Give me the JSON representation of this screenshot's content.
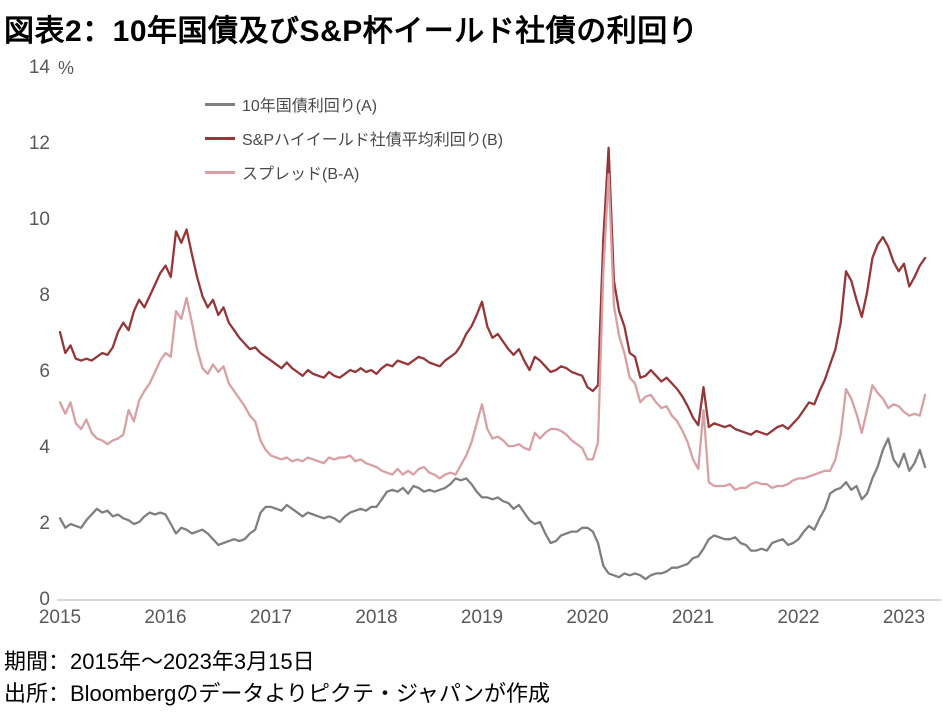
{
  "title": "図表2：10年国債及びS&P杯イールド社債の利回り",
  "footer": {
    "period": "期間：2015年～2023年3月15日",
    "source": "出所：Bloombergのデータよりピクテ・ジャパンが作成"
  },
  "chart_data": {
    "type": "line",
    "title": "図表2：10年国債及びS&P杯イールド社債の利回り",
    "unit_label": "%",
    "xlabel": "",
    "ylabel": "%",
    "xlim": [
      2015,
      2023.35
    ],
    "ylim": [
      0,
      14
    ],
    "grid": false,
    "legend_position": "top-left-inside",
    "y_ticks": [
      0,
      2,
      4,
      6,
      8,
      10,
      12,
      14
    ],
    "x_ticks": [
      2015,
      2016,
      2017,
      2018,
      2019,
      2020,
      2021,
      2022,
      2023
    ],
    "x_tick_labels": [
      "2015",
      "2016",
      "2017",
      "2018",
      "2019",
      "2020",
      "2021",
      "2022",
      "2023"
    ],
    "x_start": 2015.0,
    "x_step": 0.05,
    "axis_color": "#d9d9d9",
    "tick_color": "#595959",
    "series": [
      {
        "name": "10年国債利回り(A)",
        "color": "#7f7f7f",
        "values": [
          2.15,
          1.9,
          2.0,
          1.95,
          1.9,
          2.1,
          2.25,
          2.4,
          2.3,
          2.35,
          2.2,
          2.25,
          2.15,
          2.1,
          2.0,
          2.05,
          2.2,
          2.3,
          2.25,
          2.3,
          2.25,
          2.0,
          1.75,
          1.9,
          1.85,
          1.75,
          1.8,
          1.85,
          1.75,
          1.6,
          1.45,
          1.5,
          1.55,
          1.6,
          1.55,
          1.6,
          1.75,
          1.85,
          2.3,
          2.45,
          2.45,
          2.4,
          2.35,
          2.5,
          2.4,
          2.3,
          2.2,
          2.3,
          2.25,
          2.2,
          2.15,
          2.2,
          2.15,
          2.05,
          2.2,
          2.3,
          2.35,
          2.4,
          2.35,
          2.45,
          2.45,
          2.65,
          2.85,
          2.9,
          2.85,
          2.95,
          2.8,
          3.0,
          2.95,
          2.85,
          2.9,
          2.85,
          2.9,
          2.95,
          3.05,
          3.2,
          3.15,
          3.2,
          3.05,
          2.85,
          2.7,
          2.7,
          2.65,
          2.7,
          2.6,
          2.55,
          2.4,
          2.5,
          2.3,
          2.1,
          2.0,
          2.05,
          1.75,
          1.5,
          1.55,
          1.7,
          1.75,
          1.8,
          1.8,
          1.9,
          1.9,
          1.8,
          1.5,
          0.9,
          0.7,
          0.65,
          0.6,
          0.7,
          0.65,
          0.7,
          0.65,
          0.55,
          0.65,
          0.7,
          0.7,
          0.75,
          0.85,
          0.85,
          0.9,
          0.95,
          1.1,
          1.15,
          1.35,
          1.6,
          1.7,
          1.65,
          1.6,
          1.6,
          1.65,
          1.5,
          1.45,
          1.3,
          1.3,
          1.35,
          1.3,
          1.5,
          1.55,
          1.6,
          1.45,
          1.5,
          1.6,
          1.8,
          1.95,
          1.85,
          2.15,
          2.4,
          2.8,
          2.9,
          2.95,
          3.1,
          2.9,
          3.0,
          2.65,
          2.8,
          3.2,
          3.5,
          3.95,
          4.25,
          3.7,
          3.5,
          3.85,
          3.4,
          3.6,
          3.95,
          3.5
        ]
      },
      {
        "name": "S&Pハイイールド社債平均利回り(B)",
        "color": "#953638",
        "values": [
          7.05,
          6.5,
          6.7,
          6.35,
          6.3,
          6.35,
          6.3,
          6.4,
          6.5,
          6.45,
          6.65,
          7.05,
          7.3,
          7.1,
          7.6,
          7.9,
          7.7,
          8.0,
          8.3,
          8.6,
          8.8,
          8.5,
          9.7,
          9.4,
          9.75,
          9.1,
          8.5,
          8.0,
          7.7,
          7.9,
          7.5,
          7.7,
          7.3,
          7.1,
          6.9,
          6.75,
          6.6,
          6.65,
          6.5,
          6.4,
          6.3,
          6.2,
          6.1,
          6.25,
          6.1,
          6.0,
          5.9,
          6.05,
          5.95,
          5.9,
          5.85,
          6.0,
          5.9,
          5.85,
          5.95,
          6.05,
          6.0,
          6.1,
          6.0,
          6.05,
          5.95,
          6.1,
          6.2,
          6.15,
          6.3,
          6.25,
          6.2,
          6.3,
          6.4,
          6.35,
          6.25,
          6.2,
          6.15,
          6.3,
          6.4,
          6.5,
          6.7,
          7.0,
          7.2,
          7.5,
          7.85,
          7.2,
          6.9,
          7.0,
          6.8,
          6.6,
          6.45,
          6.6,
          6.3,
          6.05,
          6.4,
          6.3,
          6.15,
          6.0,
          6.05,
          6.15,
          6.1,
          6.0,
          5.95,
          5.9,
          5.6,
          5.5,
          5.65,
          9.5,
          11.9,
          8.4,
          7.6,
          7.2,
          6.5,
          6.4,
          5.85,
          5.9,
          6.05,
          5.9,
          5.75,
          5.85,
          5.7,
          5.55,
          5.35,
          5.1,
          4.8,
          4.6,
          5.6,
          4.55,
          4.65,
          4.6,
          4.55,
          4.6,
          4.5,
          4.45,
          4.4,
          4.35,
          4.45,
          4.4,
          4.35,
          4.45,
          4.55,
          4.6,
          4.5,
          4.65,
          4.8,
          5.0,
          5.2,
          5.15,
          5.5,
          5.8,
          6.2,
          6.6,
          7.3,
          8.65,
          8.4,
          7.9,
          7.45,
          8.1,
          9.0,
          9.35,
          9.55,
          9.3,
          8.9,
          8.65,
          8.85,
          8.25,
          8.5,
          8.8,
          9.0
        ]
      },
      {
        "name": "スプレッド(B-A)",
        "color": "#d8a0a4",
        "values": [
          5.2,
          4.9,
          5.2,
          4.65,
          4.5,
          4.75,
          4.4,
          4.25,
          4.2,
          4.1,
          4.2,
          4.25,
          4.35,
          5.0,
          4.7,
          5.25,
          5.5,
          5.7,
          6.0,
          6.3,
          6.5,
          6.4,
          7.6,
          7.4,
          7.95,
          7.3,
          6.6,
          6.1,
          5.95,
          6.2,
          6.0,
          6.15,
          5.7,
          5.5,
          5.3,
          5.1,
          4.85,
          4.7,
          4.2,
          3.95,
          3.8,
          3.75,
          3.7,
          3.75,
          3.65,
          3.7,
          3.65,
          3.75,
          3.7,
          3.65,
          3.6,
          3.75,
          3.7,
          3.75,
          3.75,
          3.8,
          3.65,
          3.7,
          3.6,
          3.55,
          3.5,
          3.4,
          3.35,
          3.3,
          3.45,
          3.3,
          3.4,
          3.3,
          3.45,
          3.5,
          3.35,
          3.3,
          3.2,
          3.3,
          3.35,
          3.3,
          3.55,
          3.8,
          4.15,
          4.65,
          5.15,
          4.5,
          4.25,
          4.3,
          4.2,
          4.05,
          4.05,
          4.1,
          4.0,
          3.95,
          4.4,
          4.25,
          4.4,
          4.5,
          4.5,
          4.45,
          4.35,
          4.2,
          4.1,
          4.0,
          3.7,
          3.7,
          4.15,
          8.6,
          11.2,
          7.75,
          6.95,
          6.5,
          5.85,
          5.7,
          5.2,
          5.35,
          5.4,
          5.2,
          5.05,
          5.1,
          4.85,
          4.7,
          4.45,
          4.15,
          3.7,
          3.45,
          5.0,
          3.1,
          3.0,
          3.0,
          3.0,
          3.05,
          2.9,
          2.95,
          2.95,
          3.05,
          3.1,
          3.05,
          3.05,
          2.95,
          3.0,
          3.0,
          3.05,
          3.15,
          3.2,
          3.2,
          3.25,
          3.3,
          3.35,
          3.4,
          3.4,
          3.7,
          4.35,
          5.55,
          5.3,
          4.9,
          4.4,
          5.0,
          5.65,
          5.45,
          5.3,
          5.05,
          5.15,
          5.1,
          4.95,
          4.85,
          4.9,
          4.85,
          5.4
        ]
      }
    ]
  }
}
